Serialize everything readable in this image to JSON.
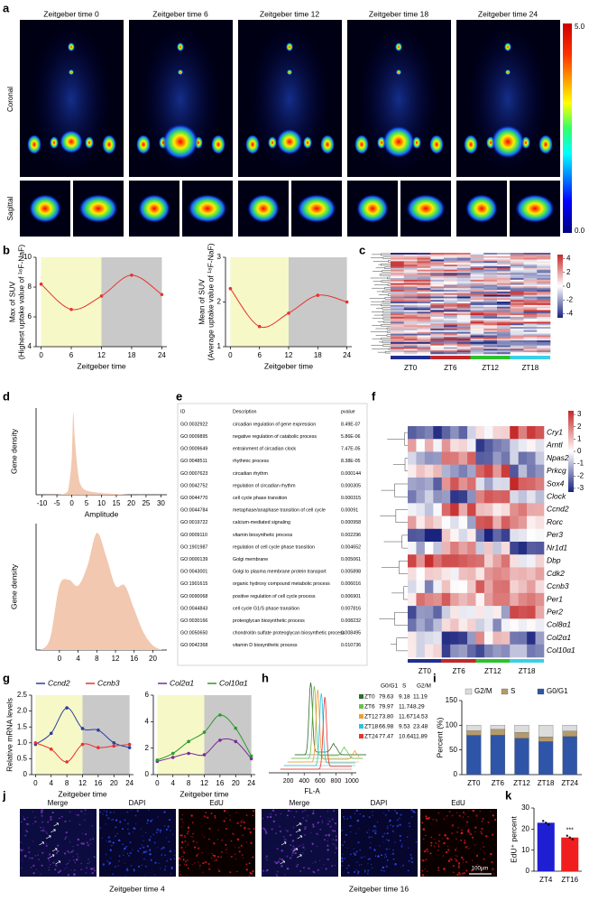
{
  "panel_letters": [
    "a",
    "b",
    "c",
    "d",
    "e",
    "f",
    "g",
    "h",
    "i",
    "j",
    "k"
  ],
  "pet_a": {
    "titles": [
      "Zeitgeber time 0",
      "Zeitgeber time 6",
      "Zeitgeber time 12",
      "Zeitgeber time 18",
      "Zeitgeber time 24"
    ],
    "row_labels": [
      "Coronal",
      "Sagittal"
    ],
    "colorbar": {
      "max": "5.0",
      "min": "0.0"
    }
  },
  "heatmap_c": {
    "groups": [
      "ZT0",
      "ZT6",
      "ZT12",
      "ZT18"
    ],
    "group_colors": [
      "#1f2f8f",
      "#c0282a",
      "#2ec02e",
      "#38d0e8"
    ],
    "colorbar_ticks": [
      4,
      2,
      0,
      -2,
      -4
    ],
    "colorbar_lim": [
      -4.6,
      4.6
    ]
  },
  "table_e": {
    "header": [
      "ID",
      "Description",
      "pvalue"
    ],
    "rows": [
      [
        "GO:0032922",
        "circadian regulation of gene expression",
        "8.49E-07"
      ],
      [
        "GO:0009895",
        "negative regulation of catabolic process",
        "5.86E-06"
      ],
      [
        "GO:0009649",
        "entrainment of circadian clock",
        "7.47E-05"
      ],
      [
        "GO:0048511",
        "rhythmic process",
        "8.38E-05"
      ],
      [
        "GO:0007623",
        "circadian rhythm",
        "0.000144"
      ],
      [
        "GO:0042752",
        "regulation of circadian rhythm",
        "0.000305"
      ],
      [
        "GO:0044770",
        "cell cycle phase transition",
        "0.000315"
      ],
      [
        "GO:0044784",
        "metaphase/anaphase transition of cell cycle",
        "0.00091"
      ],
      [
        "GO:0019722",
        "calcium-mediated signaling",
        "0.000958"
      ],
      [
        "GO:0009110",
        "vitamin biosynthetic process",
        "0.002296"
      ],
      [
        "GO:1901987",
        "regulation of cell cycle phase transition",
        "0.004652"
      ],
      [
        "GO:0000139",
        "Golgi membrane",
        "0.005061"
      ],
      [
        "GO:0043001",
        "Golgi to plasma membrane protein transport",
        "0.005898"
      ],
      [
        "GO:1901615",
        "organic hydroxy compound metabolic process",
        "0.006016"
      ],
      [
        "GO:0090068",
        "positive regulation of cell cycle process",
        "0.006901"
      ],
      [
        "GO:0044843",
        "cell cycle G1/S phase transition",
        "0.007816"
      ],
      [
        "GO:0030166",
        "proteoglycan biosynthetic process",
        "0.008232"
      ],
      [
        "GO:0050650",
        "chondroitin sulfate proteoglycan biosynthetic process",
        "0.008495"
      ],
      [
        "GO:0042368",
        "vitamin D biosynthetic process",
        "0.010736"
      ]
    ]
  },
  "heatmap_f": {
    "genes": [
      "Cry1",
      "Arntl",
      "Npas2",
      "Prkcg",
      "Sox4",
      "Clock",
      "Ccnd2",
      "Rorc",
      "Per3",
      "Nr1d1",
      "Dbp",
      "Cdk2",
      "Ccnb3",
      "Per1",
      "Per2",
      "Col8α1",
      "Col2α1",
      "Col10α1"
    ],
    "groups": [
      "ZT0",
      "ZT6",
      "ZT12",
      "ZT18"
    ],
    "group_colors": [
      "#1f2f8f",
      "#c0282a",
      "#2ec02e",
      "#38d0e8"
    ],
    "colorbar_ticks": [
      3,
      2,
      1,
      0,
      -1,
      -2,
      -3
    ],
    "colorbar_lim": [
      -3.3,
      3.3
    ]
  },
  "flow_h": {
    "header": [
      "G0/G1",
      "S",
      "G2/M"
    ],
    "rows": [
      {
        "name": "ZT0",
        "color": "#2e6b2e",
        "values": [
          "79.63",
          "9.18",
          "11.19"
        ]
      },
      {
        "name": "ZT6",
        "color": "#6cc04a",
        "values": [
          "79.97",
          "11.74",
          "8.29"
        ]
      },
      {
        "name": "ZT12",
        "color": "#f39a3a",
        "values": [
          "73.80",
          "11.67",
          "14.53"
        ]
      },
      {
        "name": "ZT18",
        "color": "#29c3e0",
        "values": [
          "66.98",
          "9.53",
          "23.48"
        ]
      },
      {
        "name": "ZT24",
        "color": "#e8322e",
        "values": [
          "77.47",
          "10.64",
          "11.89"
        ]
      }
    ],
    "xticks": [
      200,
      400,
      600,
      800,
      1000
    ],
    "xlim": [
      0,
      1000
    ],
    "xlabel": "FL-A"
  },
  "microscopy_j": {
    "channels": [
      "Merge",
      "DAPI",
      "EdU"
    ],
    "groups": [
      "Zeitgeber time 4",
      "Zeitgeber time 16"
    ],
    "scale_bar": "100μm"
  },
  "chart_data": [
    {
      "type": "line",
      "x": [
        0,
        6,
        12,
        18,
        24
      ],
      "values": [
        8.2,
        6.5,
        7.4,
        8.8,
        7.5
      ],
      "color": "#e8322e",
      "xlim": [
        -1,
        25
      ],
      "xticks": [
        0,
        6,
        12,
        18,
        24
      ],
      "ylim": [
        4,
        10
      ],
      "yticks": [
        4,
        6,
        8,
        10
      ],
      "xlabel": "Zeitgeber time",
      "ylabel": [
        "Max of SUV",
        "(Highest uptake value of ¹⁸F-NaF)"
      ],
      "shading": [
        {
          "from": 0,
          "to": 12,
          "color": "#f6f8c8"
        },
        {
          "from": 12,
          "to": 24,
          "color": "#c9c9c9"
        }
      ]
    },
    {
      "type": "line",
      "x": [
        0,
        6,
        12,
        18,
        24
      ],
      "values": [
        2.3,
        1.45,
        1.75,
        2.15,
        2.0
      ],
      "color": "#e8322e",
      "xlim": [
        -1,
        25
      ],
      "xticks": [
        0,
        6,
        12,
        18,
        24
      ],
      "ylim": [
        1,
        3
      ],
      "yticks": [
        1,
        2,
        3
      ],
      "xlabel": "Zeitgeber time",
      "ylabel": [
        "Mean of SUV",
        "(Average uptake value of ¹⁸F-NaF)"
      ],
      "shading": [
        {
          "from": 0,
          "to": 12,
          "color": "#f6f8c8"
        },
        {
          "from": 12,
          "to": 24,
          "color": "#c9c9c9"
        }
      ]
    },
    {
      "type": "area",
      "x": [
        -10,
        -5,
        -2,
        -1,
        0,
        0.5,
        1,
        2,
        3,
        5,
        10,
        15,
        20,
        30
      ],
      "values": [
        0,
        0,
        0.02,
        0.1,
        0.45,
        1.0,
        0.7,
        0.3,
        0.12,
        0.05,
        0.02,
        0.01,
        0,
        0
      ],
      "color": "#f2c8b0",
      "xlim": [
        -12,
        32
      ],
      "xticks": [
        -10,
        -5,
        0,
        5,
        10,
        15,
        20,
        25,
        30
      ],
      "ylim": [
        0,
        1.05
      ],
      "xlabel": "Amplitude",
      "ylabel": "Gene density"
    },
    {
      "type": "area",
      "x": [
        -4,
        -2,
        0,
        2,
        4,
        6,
        8,
        10,
        12,
        14,
        16,
        18,
        20,
        22
      ],
      "values": [
        0,
        0.1,
        0.55,
        0.6,
        0.55,
        0.72,
        1.0,
        0.8,
        0.55,
        0.55,
        0.35,
        0.15,
        0.04,
        0
      ],
      "color": "#f2c8b0",
      "xlim": [
        -5,
        23
      ],
      "xticks": [
        0,
        4,
        8,
        12,
        16,
        20
      ],
      "ylim": [
        0,
        1.08
      ],
      "ylabel": "Gene density"
    },
    {
      "type": "line",
      "x": [
        0,
        4,
        8,
        12,
        16,
        20,
        24
      ],
      "series": [
        {
          "name": "Ccnd2",
          "color": "#2c3e9e",
          "values": [
            0.95,
            1.3,
            2.1,
            1.45,
            1.4,
            1.0,
            0.85
          ]
        },
        {
          "name": "Ccnb3",
          "color": "#e8322e",
          "values": [
            1.0,
            0.8,
            0.4,
            0.95,
            0.85,
            0.9,
            0.95
          ]
        }
      ],
      "xlim": [
        -1,
        25
      ],
      "xticks": [
        0,
        4,
        8,
        12,
        16,
        20,
        24
      ],
      "ylim": [
        0,
        2.5
      ],
      "yticks": [
        0,
        0.5,
        {
          "value": 1,
          "label": "1.0"
        },
        1.5,
        {
          "value": 2,
          "label": "2.0"
        },
        2.5
      ],
      "xlabel": "Zeitgeber time",
      "ylabel": "Relative mRNA levels",
      "shading": [
        {
          "from": 0,
          "to": 12,
          "color": "#f6f8c8"
        },
        {
          "from": 12,
          "to": 24,
          "color": "#c9c9c9"
        }
      ]
    },
    {
      "type": "line",
      "x": [
        0,
        4,
        8,
        12,
        16,
        20,
        24
      ],
      "series": [
        {
          "name": "Col2α1",
          "color": "#7a2a9a",
          "values": [
            1.0,
            1.3,
            1.6,
            1.5,
            2.6,
            2.5,
            1.2
          ]
        },
        {
          "name": "Col10α1",
          "color": "#2e9a2e",
          "values": [
            1.1,
            1.6,
            2.5,
            3.2,
            4.5,
            3.5,
            1.4
          ]
        }
      ],
      "xlim": [
        -1,
        25
      ],
      "xticks": [
        0,
        4,
        8,
        12,
        16,
        20,
        24
      ],
      "ylim": [
        0,
        6
      ],
      "yticks": [
        0,
        2,
        4,
        6
      ],
      "xlabel": "Zeitgeber time",
      "shading": [
        {
          "from": 0,
          "to": 12,
          "color": "#f6f8c8"
        },
        {
          "from": 12,
          "to": 24,
          "color": "#c9c9c9"
        }
      ]
    },
    {
      "type": "stacked_bar",
      "categories": [
        "ZT0",
        "ZT6",
        "ZT12",
        "ZT18",
        "ZT24"
      ],
      "series": [
        {
          "name": "G0/G1",
          "color": "#2f55a8",
          "values": [
            79.63,
            79.97,
            73.8,
            66.98,
            77.47
          ]
        },
        {
          "name": "S",
          "color": "#b59a6a",
          "values": [
            9.18,
            11.74,
            11.67,
            9.53,
            10.64
          ]
        },
        {
          "name": "G2/M",
          "color": "#dcdcdc",
          "values": [
            11.19,
            8.29,
            14.53,
            23.48,
            11.89
          ]
        }
      ],
      "ylim": [
        0,
        150
      ],
      "yticks": [
        0,
        50,
        100,
        150
      ],
      "ylabel": "Percent (%)"
    },
    {
      "type": "bar",
      "categories": [
        "ZT4",
        "ZT16"
      ],
      "values": [
        23,
        16
      ],
      "colors": [
        "#1e1ed2",
        "#f01e1e"
      ],
      "ylim": [
        0,
        30
      ],
      "yticks": [
        0,
        10,
        20,
        30
      ],
      "ylabel": "EdU⁺ percent",
      "annotation": "***"
    }
  ]
}
